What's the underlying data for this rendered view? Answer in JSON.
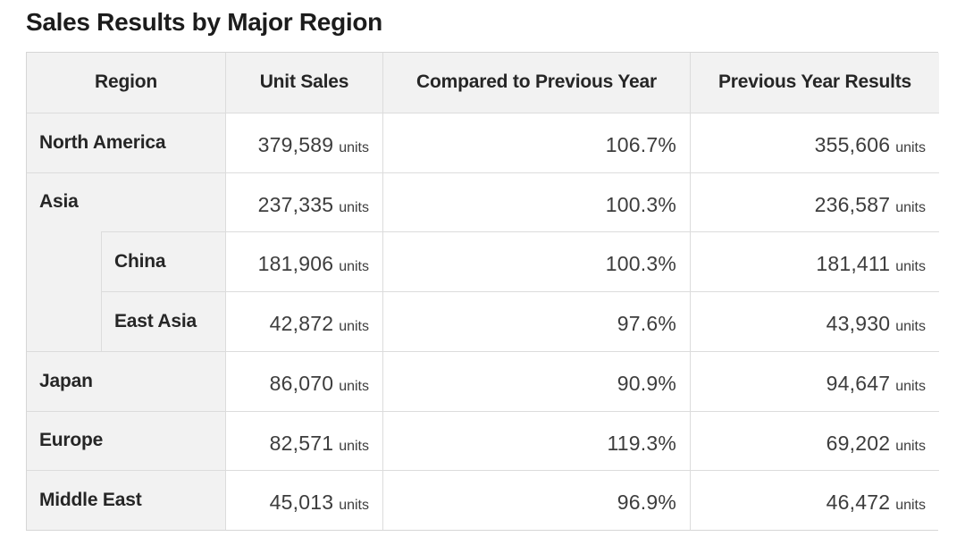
{
  "title": "Sales Results by Major Region",
  "colors": {
    "header_bg": "#f2f2f2",
    "region_cell_bg": "#f2f2f2",
    "data_cell_bg": "#ffffff",
    "border": "#d9d9d9",
    "text": "#262626"
  },
  "table": {
    "headers": {
      "region": "Region",
      "unit_sales": "Unit Sales",
      "compared": "Compared to Previous Year",
      "previous": "Previous Year Results"
    },
    "units_suffix": "units",
    "rows": [
      {
        "region": "North America",
        "level": 0,
        "unit_sales": "379,589",
        "compared": "106.7%",
        "previous": "355,606"
      },
      {
        "region": "Asia",
        "level": 0,
        "unit_sales": "237,335",
        "compared": "100.3%",
        "previous": "236,587"
      },
      {
        "region": "China",
        "level": 1,
        "unit_sales": "181,906",
        "compared": "100.3%",
        "previous": "181,411"
      },
      {
        "region": "East Asia",
        "level": 1,
        "unit_sales": "42,872",
        "compared": "97.6%",
        "previous": "43,930"
      },
      {
        "region": "Japan",
        "level": 0,
        "unit_sales": "86,070",
        "compared": "90.9%",
        "previous": "94,647"
      },
      {
        "region": "Europe",
        "level": 0,
        "unit_sales": "82,571",
        "compared": "119.3%",
        "previous": "69,202"
      },
      {
        "region": "Middle East",
        "level": 0,
        "unit_sales": "45,013",
        "compared": "96.9%",
        "previous": "46,472"
      }
    ]
  },
  "chart_data": {
    "type": "table",
    "title": "Sales Results by Major Region",
    "columns": [
      "Region",
      "Unit Sales",
      "Compared to Previous Year",
      "Previous Year Results"
    ],
    "rows": [
      {
        "region": "North America",
        "level": 0,
        "unit_sales": 379589,
        "compared_to_previous_year_pct": 106.7,
        "previous_year_results": 355606
      },
      {
        "region": "Asia",
        "level": 0,
        "unit_sales": 237335,
        "compared_to_previous_year_pct": 100.3,
        "previous_year_results": 236587
      },
      {
        "region": "China",
        "level": 1,
        "unit_sales": 181906,
        "compared_to_previous_year_pct": 100.3,
        "previous_year_results": 181411
      },
      {
        "region": "East Asia",
        "level": 1,
        "unit_sales": 42872,
        "compared_to_previous_year_pct": 97.6,
        "previous_year_results": 43930
      },
      {
        "region": "Japan",
        "level": 0,
        "unit_sales": 86070,
        "compared_to_previous_year_pct": 90.9,
        "previous_year_results": 94647
      },
      {
        "region": "Europe",
        "level": 0,
        "unit_sales": 82571,
        "compared_to_previous_year_pct": 119.3,
        "previous_year_results": 69202
      },
      {
        "region": "Middle East",
        "level": 0,
        "unit_sales": 45013,
        "compared_to_previous_year_pct": 96.9,
        "previous_year_results": 46472
      }
    ],
    "units": {
      "unit_sales": "units",
      "previous_year_results": "units",
      "compared_to_previous_year": "%"
    }
  }
}
